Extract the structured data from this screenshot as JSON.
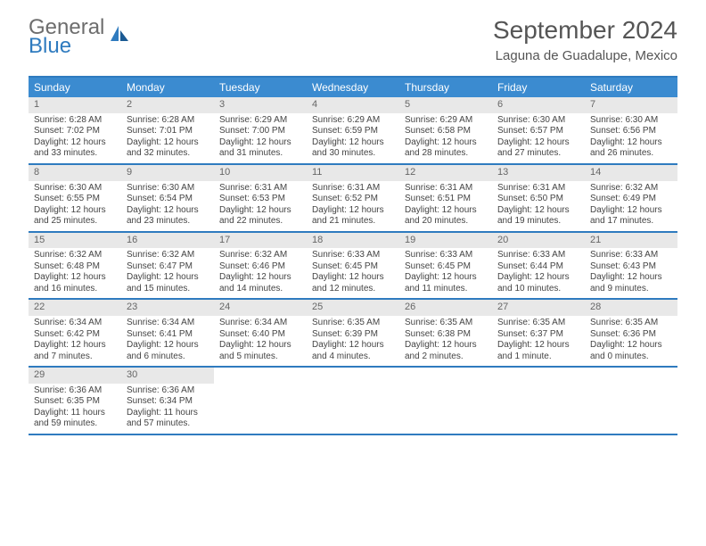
{
  "brand": {
    "general": "General",
    "blue": "Blue"
  },
  "title": "September 2024",
  "location": "Laguna de Guadalupe, Mexico",
  "colors": {
    "header_bar": "#3b8bd0",
    "border": "#2f7bbf",
    "daynum_bg": "#e8e8e8",
    "text": "#444444",
    "logo_gray": "#6d6d6d",
    "logo_blue": "#2f7bbf"
  },
  "weekdays": [
    "Sunday",
    "Monday",
    "Tuesday",
    "Wednesday",
    "Thursday",
    "Friday",
    "Saturday"
  ],
  "weeks": [
    [
      {
        "n": "1",
        "sr": "Sunrise: 6:28 AM",
        "ss": "Sunset: 7:02 PM",
        "d1": "Daylight: 12 hours",
        "d2": "and 33 minutes."
      },
      {
        "n": "2",
        "sr": "Sunrise: 6:28 AM",
        "ss": "Sunset: 7:01 PM",
        "d1": "Daylight: 12 hours",
        "d2": "and 32 minutes."
      },
      {
        "n": "3",
        "sr": "Sunrise: 6:29 AM",
        "ss": "Sunset: 7:00 PM",
        "d1": "Daylight: 12 hours",
        "d2": "and 31 minutes."
      },
      {
        "n": "4",
        "sr": "Sunrise: 6:29 AM",
        "ss": "Sunset: 6:59 PM",
        "d1": "Daylight: 12 hours",
        "d2": "and 30 minutes."
      },
      {
        "n": "5",
        "sr": "Sunrise: 6:29 AM",
        "ss": "Sunset: 6:58 PM",
        "d1": "Daylight: 12 hours",
        "d2": "and 28 minutes."
      },
      {
        "n": "6",
        "sr": "Sunrise: 6:30 AM",
        "ss": "Sunset: 6:57 PM",
        "d1": "Daylight: 12 hours",
        "d2": "and 27 minutes."
      },
      {
        "n": "7",
        "sr": "Sunrise: 6:30 AM",
        "ss": "Sunset: 6:56 PM",
        "d1": "Daylight: 12 hours",
        "d2": "and 26 minutes."
      }
    ],
    [
      {
        "n": "8",
        "sr": "Sunrise: 6:30 AM",
        "ss": "Sunset: 6:55 PM",
        "d1": "Daylight: 12 hours",
        "d2": "and 25 minutes."
      },
      {
        "n": "9",
        "sr": "Sunrise: 6:30 AM",
        "ss": "Sunset: 6:54 PM",
        "d1": "Daylight: 12 hours",
        "d2": "and 23 minutes."
      },
      {
        "n": "10",
        "sr": "Sunrise: 6:31 AM",
        "ss": "Sunset: 6:53 PM",
        "d1": "Daylight: 12 hours",
        "d2": "and 22 minutes."
      },
      {
        "n": "11",
        "sr": "Sunrise: 6:31 AM",
        "ss": "Sunset: 6:52 PM",
        "d1": "Daylight: 12 hours",
        "d2": "and 21 minutes."
      },
      {
        "n": "12",
        "sr": "Sunrise: 6:31 AM",
        "ss": "Sunset: 6:51 PM",
        "d1": "Daylight: 12 hours",
        "d2": "and 20 minutes."
      },
      {
        "n": "13",
        "sr": "Sunrise: 6:31 AM",
        "ss": "Sunset: 6:50 PM",
        "d1": "Daylight: 12 hours",
        "d2": "and 19 minutes."
      },
      {
        "n": "14",
        "sr": "Sunrise: 6:32 AM",
        "ss": "Sunset: 6:49 PM",
        "d1": "Daylight: 12 hours",
        "d2": "and 17 minutes."
      }
    ],
    [
      {
        "n": "15",
        "sr": "Sunrise: 6:32 AM",
        "ss": "Sunset: 6:48 PM",
        "d1": "Daylight: 12 hours",
        "d2": "and 16 minutes."
      },
      {
        "n": "16",
        "sr": "Sunrise: 6:32 AM",
        "ss": "Sunset: 6:47 PM",
        "d1": "Daylight: 12 hours",
        "d2": "and 15 minutes."
      },
      {
        "n": "17",
        "sr": "Sunrise: 6:32 AM",
        "ss": "Sunset: 6:46 PM",
        "d1": "Daylight: 12 hours",
        "d2": "and 14 minutes."
      },
      {
        "n": "18",
        "sr": "Sunrise: 6:33 AM",
        "ss": "Sunset: 6:45 PM",
        "d1": "Daylight: 12 hours",
        "d2": "and 12 minutes."
      },
      {
        "n": "19",
        "sr": "Sunrise: 6:33 AM",
        "ss": "Sunset: 6:45 PM",
        "d1": "Daylight: 12 hours",
        "d2": "and 11 minutes."
      },
      {
        "n": "20",
        "sr": "Sunrise: 6:33 AM",
        "ss": "Sunset: 6:44 PM",
        "d1": "Daylight: 12 hours",
        "d2": "and 10 minutes."
      },
      {
        "n": "21",
        "sr": "Sunrise: 6:33 AM",
        "ss": "Sunset: 6:43 PM",
        "d1": "Daylight: 12 hours",
        "d2": "and 9 minutes."
      }
    ],
    [
      {
        "n": "22",
        "sr": "Sunrise: 6:34 AM",
        "ss": "Sunset: 6:42 PM",
        "d1": "Daylight: 12 hours",
        "d2": "and 7 minutes."
      },
      {
        "n": "23",
        "sr": "Sunrise: 6:34 AM",
        "ss": "Sunset: 6:41 PM",
        "d1": "Daylight: 12 hours",
        "d2": "and 6 minutes."
      },
      {
        "n": "24",
        "sr": "Sunrise: 6:34 AM",
        "ss": "Sunset: 6:40 PM",
        "d1": "Daylight: 12 hours",
        "d2": "and 5 minutes."
      },
      {
        "n": "25",
        "sr": "Sunrise: 6:35 AM",
        "ss": "Sunset: 6:39 PM",
        "d1": "Daylight: 12 hours",
        "d2": "and 4 minutes."
      },
      {
        "n": "26",
        "sr": "Sunrise: 6:35 AM",
        "ss": "Sunset: 6:38 PM",
        "d1": "Daylight: 12 hours",
        "d2": "and 2 minutes."
      },
      {
        "n": "27",
        "sr": "Sunrise: 6:35 AM",
        "ss": "Sunset: 6:37 PM",
        "d1": "Daylight: 12 hours",
        "d2": "and 1 minute."
      },
      {
        "n": "28",
        "sr": "Sunrise: 6:35 AM",
        "ss": "Sunset: 6:36 PM",
        "d1": "Daylight: 12 hours",
        "d2": "and 0 minutes."
      }
    ],
    [
      {
        "n": "29",
        "sr": "Sunrise: 6:36 AM",
        "ss": "Sunset: 6:35 PM",
        "d1": "Daylight: 11 hours",
        "d2": "and 59 minutes."
      },
      {
        "n": "30",
        "sr": "Sunrise: 6:36 AM",
        "ss": "Sunset: 6:34 PM",
        "d1": "Daylight: 11 hours",
        "d2": "and 57 minutes."
      },
      null,
      null,
      null,
      null,
      null
    ]
  ]
}
